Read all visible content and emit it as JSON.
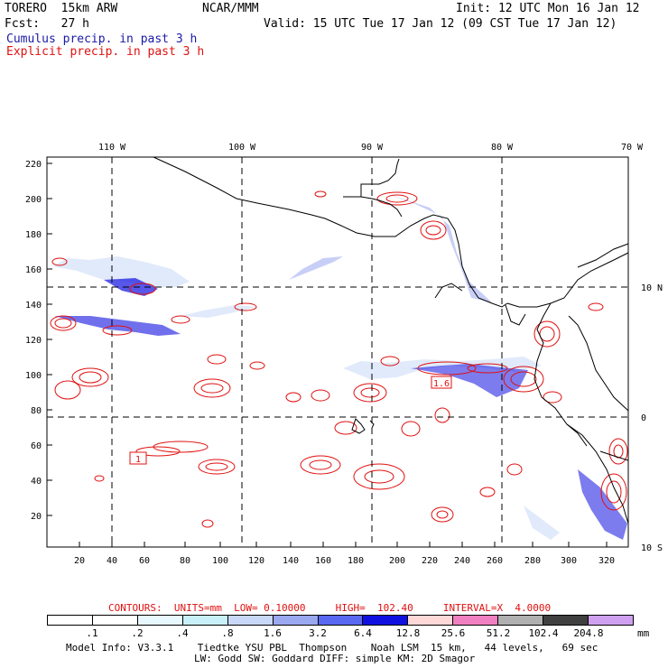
{
  "header": {
    "model": "TORERO  15km ARW",
    "org": "NCAR/MMM",
    "init": "Init: 12 UTC Mon 16 Jan 12",
    "fcst": "Fcst:   27 h",
    "valid": "Valid: 15 UTC Tue 17 Jan 12 (09 CST Tue 17 Jan 12)",
    "cumulus_label": "Cumulus precip. in past 3 h",
    "explicit_label": "Explicit precip. in past 3 h"
  },
  "colors": {
    "cumulus_text": "#1a1aa8",
    "explicit_text": "#e01010",
    "explicit_contour": "#e01010",
    "map_lines": "#000000"
  },
  "top_axis_labels": [
    "110 W",
    "100 W",
    "90 W",
    "80 W",
    "70 W"
  ],
  "right_axis_labels": [
    "10 N",
    "0",
    "10 S"
  ],
  "left_axis_labels": [
    "220",
    "200",
    "180",
    "160",
    "140",
    "120",
    "100",
    "80",
    "60",
    "40",
    "20"
  ],
  "bottom_axis_labels": [
    "20",
    "40",
    "60",
    "80",
    "100",
    "120",
    "140",
    "160",
    "180",
    "200",
    "220",
    "240",
    "260",
    "280",
    "300",
    "320"
  ],
  "map_annotations": {
    "box_left": "1",
    "box_right": "1.6"
  },
  "contour_info": "CONTOURS:  UNITS=mm  LOW= 0.10000     HIGH=  102.40     INTERVAL=X  4.0000",
  "legend": {
    "unit": "mm",
    "levels": [
      ".1",
      ".2",
      ".4",
      ".8",
      "1.6",
      "3.2",
      "6.4",
      "12.8",
      "25.6",
      "51.2",
      "102.4",
      "204.8"
    ],
    "colors": [
      "#ffffff",
      "#ffffff",
      "#e8f8ff",
      "#c8f0f8",
      "#c8d8f8",
      "#9aa8f0",
      "#5a6af0",
      "#1010e0",
      "#ffd8d8",
      "#f080c0",
      "#b0b0b0",
      "#404040",
      "#d0a0f0"
    ]
  },
  "footer": {
    "line1": "Model Info: V3.3.1    Tiedtke YSU PBL  Thompson    Noah LSM  15 km,   44 levels,   69 sec",
    "line2": "LW: Godd SW: Goddard DIFF: simple KM: 2D Smagor"
  }
}
